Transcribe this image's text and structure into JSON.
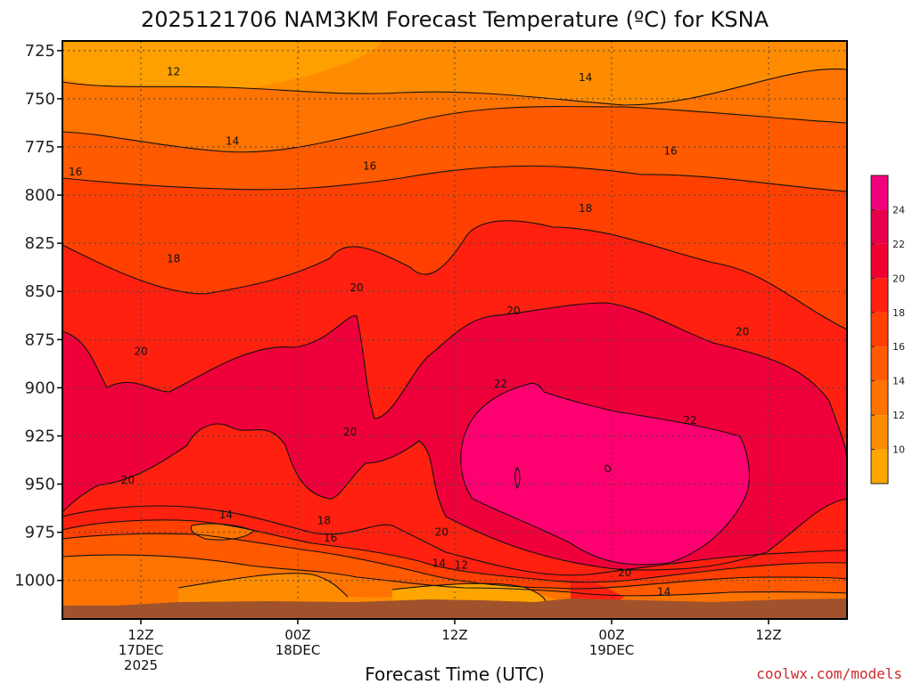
{
  "chart_data": {
    "type": "heatmap",
    "title": "2025121706 NAM3KM Forecast Temperature (ºC) for KSNA",
    "xlabel": "Forecast Time (UTC)",
    "ylabel": "",
    "credit": "coolwx.com/models",
    "x_axis": {
      "start_hour": 6,
      "end_hour": 66,
      "ticks": [
        {
          "hour": 12,
          "lines": [
            "12Z",
            "17DEC",
            "2025"
          ]
        },
        {
          "hour": 24,
          "lines": [
            "00Z",
            "18DEC"
          ]
        },
        {
          "hour": 36,
          "lines": [
            "12Z"
          ]
        },
        {
          "hour": 48,
          "lines": [
            "00Z",
            "19DEC"
          ]
        },
        {
          "hour": 60,
          "lines": [
            "12Z"
          ]
        }
      ]
    },
    "y_axis": {
      "scale": "pressure",
      "top_hpa": 720,
      "bottom_hpa": 1020,
      "reversed": true,
      "ticks": [
        725,
        750,
        775,
        800,
        825,
        850,
        875,
        900,
        925,
        950,
        975,
        1000
      ],
      "tick_labels": [
        "725",
        "750",
        "775",
        "800",
        "825",
        "850",
        "875",
        "900",
        "925",
        "950",
        "975",
        "1000"
      ]
    },
    "grid": true,
    "colorbar": {
      "placement": "right",
      "levels": [
        8,
        10,
        12,
        14,
        16,
        18,
        20,
        22,
        24,
        26
      ],
      "colors": [
        "#ffa500",
        "#ff8c00",
        "#ff7300",
        "#ff5a00",
        "#ff4000",
        "#ff2010",
        "#f00030",
        "#e8004a",
        "#f0007a"
      ],
      "tick_values": [
        10,
        12,
        14,
        16,
        18,
        20,
        22,
        24
      ],
      "tick_labels": [
        "10",
        "12",
        "14",
        "16",
        "18",
        "20",
        "22",
        "24"
      ]
    },
    "contour_labels": [
      {
        "text": "12",
        "hour": 14.5,
        "hpa": 736
      },
      {
        "text": "14",
        "hour": 19.0,
        "hpa": 772
      },
      {
        "text": "14",
        "hour": 46.0,
        "hpa": 739
      },
      {
        "text": "16",
        "hour": 7.0,
        "hpa": 788
      },
      {
        "text": "16",
        "hour": 29.5,
        "hpa": 785
      },
      {
        "text": "16",
        "hour": 52.5,
        "hpa": 777
      },
      {
        "text": "18",
        "hour": 14.5,
        "hpa": 833
      },
      {
        "text": "18",
        "hour": 46.0,
        "hpa": 807
      },
      {
        "text": "20",
        "hour": 28.5,
        "hpa": 848
      },
      {
        "text": "20",
        "hour": 12.0,
        "hpa": 881
      },
      {
        "text": "20",
        "hour": 40.5,
        "hpa": 860
      },
      {
        "text": "20",
        "hour": 58.0,
        "hpa": 871
      },
      {
        "text": "22",
        "hour": 39.5,
        "hpa": 898
      },
      {
        "text": "22",
        "hour": 54.0,
        "hpa": 917
      },
      {
        "text": "20",
        "hour": 28.0,
        "hpa": 923
      },
      {
        "text": "20",
        "hour": 11.0,
        "hpa": 948
      },
      {
        "text": "14",
        "hour": 18.5,
        "hpa": 966
      },
      {
        "text": "18",
        "hour": 26.0,
        "hpa": 969
      },
      {
        "text": "16",
        "hour": 26.5,
        "hpa": 978
      },
      {
        "text": "20",
        "hour": 35.0,
        "hpa": 975
      },
      {
        "text": "14",
        "hour": 34.8,
        "hpa": 991
      },
      {
        "text": "12",
        "hour": 36.5,
        "hpa": 992
      },
      {
        "text": "20",
        "hour": 49.0,
        "hpa": 996
      },
      {
        "text": "14",
        "hour": 52.0,
        "hpa": 1006
      }
    ]
  }
}
